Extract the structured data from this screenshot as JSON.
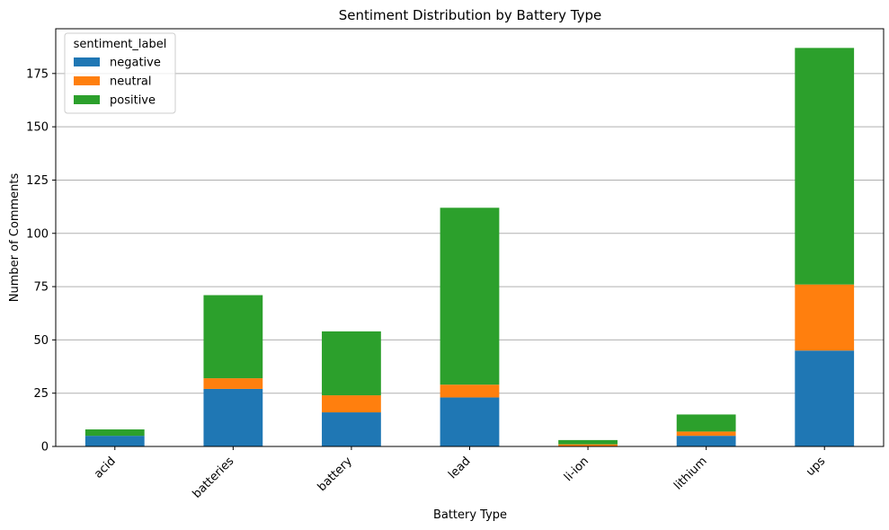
{
  "chart_data": {
    "type": "bar",
    "stacked": true,
    "title": "Sentiment Distribution by Battery Type",
    "xlabel": "Battery Type",
    "ylabel": "Number of Comments",
    "categories": [
      "acid",
      "batteries",
      "battery",
      "lead",
      "li-ion",
      "lithium",
      "ups"
    ],
    "series": [
      {
        "name": "negative",
        "color": "#1f77b4",
        "values": [
          5,
          27,
          16,
          23,
          0,
          5,
          45
        ]
      },
      {
        "name": "neutral",
        "color": "#ff7f0e",
        "values": [
          0,
          5,
          8,
          6,
          1,
          2,
          31
        ]
      },
      {
        "name": "positive",
        "color": "#2ca02c",
        "values": [
          3,
          39,
          30,
          83,
          2,
          8,
          111
        ]
      }
    ],
    "ylim": [
      0,
      196
    ],
    "yticks": [
      0,
      25,
      50,
      75,
      100,
      125,
      150,
      175
    ],
    "grid": "y",
    "legend": {
      "title": "sentiment_label",
      "position": "top-left"
    }
  }
}
